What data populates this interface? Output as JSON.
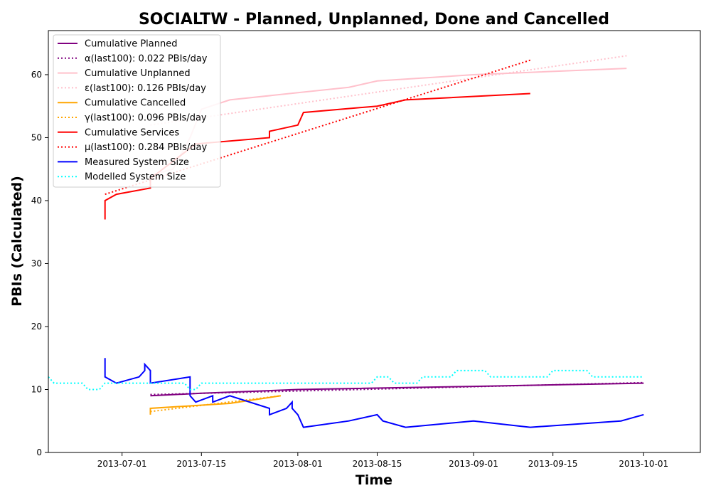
{
  "chart_data": {
    "type": "line",
    "title": "SOCIALTW - Planned, Unplanned, Done  and Cancelled",
    "xlabel": "Time",
    "ylabel": "PBIs (Calculated)",
    "xlim": [
      "2013-06-18",
      "2013-10-11"
    ],
    "ylim": [
      0,
      67
    ],
    "x_ticks": [
      "2013-07-01",
      "2013-07-15",
      "2013-08-01",
      "2013-08-15",
      "2013-09-01",
      "2013-09-15",
      "2013-10-01"
    ],
    "y_ticks": [
      0,
      10,
      20,
      30,
      40,
      50,
      60
    ],
    "grid": false,
    "legend_position": "top-left",
    "series": [
      {
        "name": "Cumulative Planned",
        "style": "solid",
        "color": "#800080",
        "points": [
          [
            "2013-07-06",
            9
          ],
          [
            "2013-07-15",
            9.4
          ],
          [
            "2013-08-01",
            10
          ],
          [
            "2013-09-01",
            10.5
          ],
          [
            "2013-10-01",
            11
          ]
        ]
      },
      {
        "name": "α(last100): 0.022 PBIs/day",
        "style": "dotted",
        "color": "#800080",
        "points": [
          [
            "2013-07-06",
            9.2
          ],
          [
            "2013-10-01",
            11.1
          ]
        ]
      },
      {
        "name": "Cumulative Unplanned",
        "style": "solid",
        "color": "#ffc0cb",
        "points": [
          [
            "2013-07-06",
            44
          ],
          [
            "2013-07-10",
            45
          ],
          [
            "2013-07-13",
            50
          ],
          [
            "2013-07-15",
            54.5
          ],
          [
            "2013-07-20",
            56
          ],
          [
            "2013-08-10",
            58
          ],
          [
            "2013-08-15",
            59
          ],
          [
            "2013-09-01",
            60
          ],
          [
            "2013-09-28",
            61
          ]
        ]
      },
      {
        "name": "ε(last100): 0.126 PBIs/day",
        "style": "dotted",
        "color": "#ffc0cb",
        "points": [
          [
            "2013-07-06",
            52
          ],
          [
            "2013-09-28",
            63
          ]
        ]
      },
      {
        "name": "Cumulative Cancelled",
        "style": "solid",
        "color": "#ffa500",
        "points": [
          [
            "2013-07-06",
            6
          ],
          [
            "2013-07-06",
            7
          ],
          [
            "2013-07-20",
            7.8
          ],
          [
            "2013-07-29",
            9
          ]
        ]
      },
      {
        "name": "γ(last100): 0.096 PBIs/day",
        "style": "dotted",
        "color": "#ffa500",
        "points": [
          [
            "2013-07-06",
            6.5
          ],
          [
            "2013-07-29",
            9
          ]
        ]
      },
      {
        "name": "Cumulative Services",
        "style": "solid",
        "color": "#ff0000",
        "points": [
          [
            "2013-06-28",
            37
          ],
          [
            "2013-06-28",
            40
          ],
          [
            "2013-06-30",
            41
          ],
          [
            "2013-07-06",
            42
          ],
          [
            "2013-07-06",
            43.5
          ],
          [
            "2013-07-14",
            49
          ],
          [
            "2013-07-27",
            50
          ],
          [
            "2013-07-27",
            51
          ],
          [
            "2013-08-01",
            52
          ],
          [
            "2013-08-02",
            54
          ],
          [
            "2013-08-15",
            55
          ],
          [
            "2013-08-20",
            56
          ],
          [
            "2013-09-11",
            57
          ]
        ]
      },
      {
        "name": "μ(last100): 0.284 PBIs/day",
        "style": "dotted",
        "color": "#ff0000",
        "points": [
          [
            "2013-06-28",
            41
          ],
          [
            "2013-09-11",
            62.3
          ]
        ]
      },
      {
        "name": "Measured System Size",
        "style": "solid",
        "color": "#0000ff",
        "points": [
          [
            "2013-06-28",
            15
          ],
          [
            "2013-06-28",
            12
          ],
          [
            "2013-06-30",
            11
          ],
          [
            "2013-07-04",
            12
          ],
          [
            "2013-07-05",
            13
          ],
          [
            "2013-07-05",
            14
          ],
          [
            "2013-07-06",
            13
          ],
          [
            "2013-07-06",
            11
          ],
          [
            "2013-07-13",
            12
          ],
          [
            "2013-07-13",
            9
          ],
          [
            "2013-07-14",
            8
          ],
          [
            "2013-07-17",
            9
          ],
          [
            "2013-07-17",
            8
          ],
          [
            "2013-07-20",
            9
          ],
          [
            "2013-07-27",
            7
          ],
          [
            "2013-07-27",
            6
          ],
          [
            "2013-07-30",
            7
          ],
          [
            "2013-07-31",
            8
          ],
          [
            "2013-07-31",
            7
          ],
          [
            "2013-08-01",
            6
          ],
          [
            "2013-08-02",
            4
          ],
          [
            "2013-08-10",
            5
          ],
          [
            "2013-08-15",
            6
          ],
          [
            "2013-08-16",
            5
          ],
          [
            "2013-08-20",
            4
          ],
          [
            "2013-09-01",
            5
          ],
          [
            "2013-09-11",
            4
          ],
          [
            "2013-09-27",
            5
          ],
          [
            "2013-10-01",
            6
          ]
        ]
      },
      {
        "name": "Modelled System Size",
        "style": "dotted",
        "color": "#00ffff",
        "points": [
          [
            "2013-06-18",
            12
          ],
          [
            "2013-06-19",
            11
          ],
          [
            "2013-06-24",
            11
          ],
          [
            "2013-06-25",
            10
          ],
          [
            "2013-06-27",
            10
          ],
          [
            "2013-06-28",
            11
          ],
          [
            "2013-07-12",
            11
          ],
          [
            "2013-07-13",
            10
          ],
          [
            "2013-07-14",
            10
          ],
          [
            "2013-07-15",
            11
          ],
          [
            "2013-08-14",
            11
          ],
          [
            "2013-08-15",
            12
          ],
          [
            "2013-08-17",
            12
          ],
          [
            "2013-08-18",
            11
          ],
          [
            "2013-08-22",
            11
          ],
          [
            "2013-08-23",
            12
          ],
          [
            "2013-08-28",
            12
          ],
          [
            "2013-08-29",
            13
          ],
          [
            "2013-09-03",
            13
          ],
          [
            "2013-09-04",
            12
          ],
          [
            "2013-09-14",
            12
          ],
          [
            "2013-09-15",
            13
          ],
          [
            "2013-09-21",
            13
          ],
          [
            "2013-09-22",
            12
          ],
          [
            "2013-10-01",
            12
          ]
        ]
      }
    ]
  }
}
